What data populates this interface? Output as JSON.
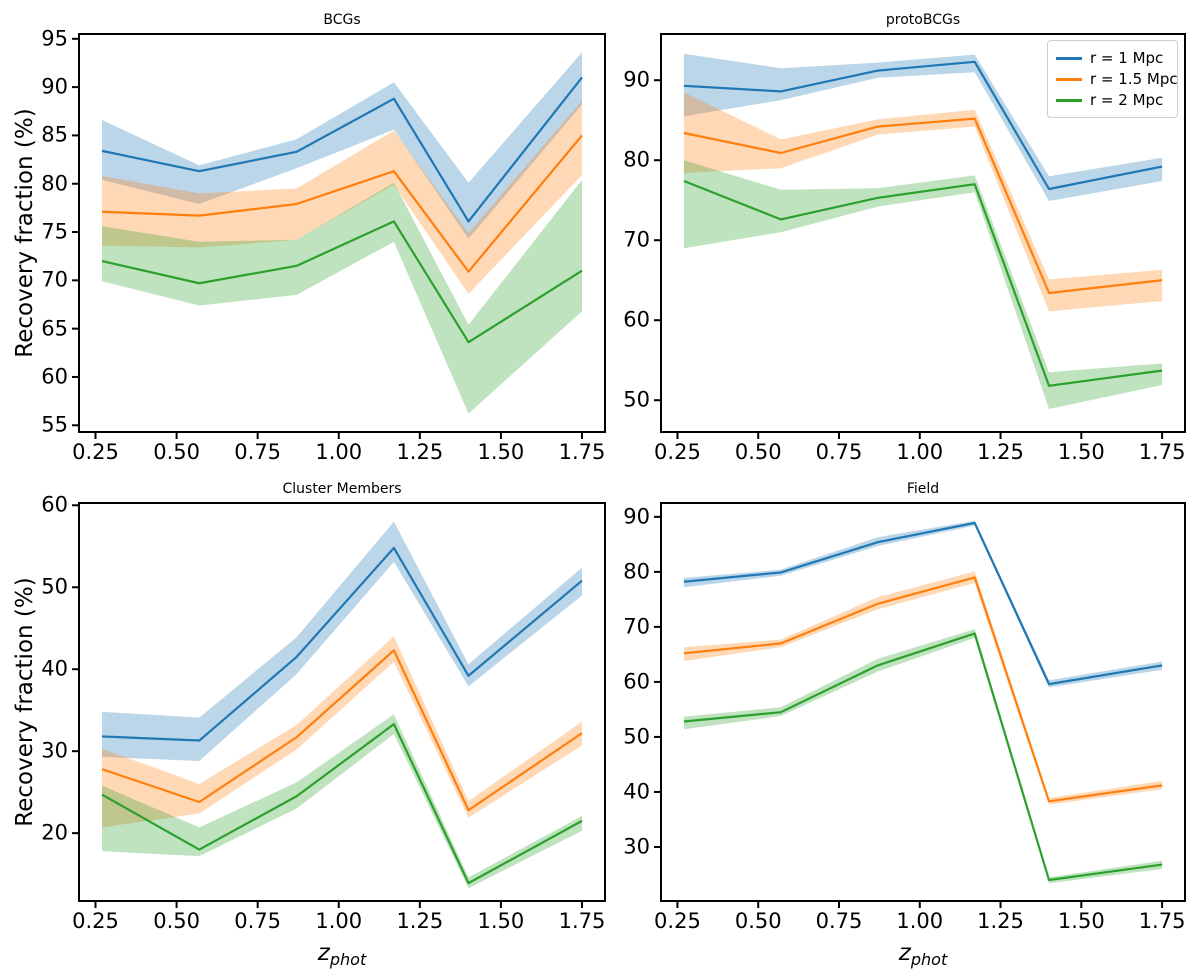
{
  "figure": {
    "background": "#ffffff",
    "ylabel": "Recovery fraction (%)",
    "xlabel": {
      "main": "z",
      "sub": "phot"
    }
  },
  "legend": {
    "position": "upper-right of protoBCGs panel",
    "items": [
      {
        "label": "r = 1 Mpc",
        "color": "#1f77b4"
      },
      {
        "label": "r = 1.5 Mpc",
        "color": "#ff7f0e"
      },
      {
        "label": "r = 2 Mpc",
        "color": "#2ca02c"
      }
    ]
  },
  "chart_data": [
    {
      "type": "line",
      "title": "BCGs",
      "xlabel": "z_phot",
      "ylabel": "Recovery fraction (%)",
      "grid": false,
      "band_alpha": 0.3,
      "x": [
        0.27,
        0.57,
        0.87,
        1.17,
        1.4,
        1.75
      ],
      "xlim": [
        0.196,
        1.824
      ],
      "ylim": [
        54.2,
        95.6
      ],
      "xticks": [
        {
          "value": 0.25,
          "label": "0.25"
        },
        {
          "value": 0.5,
          "label": "0.50"
        },
        {
          "value": 0.75,
          "label": "0.75"
        },
        {
          "value": 1.0,
          "label": "1.00"
        },
        {
          "value": 1.25,
          "label": "1.25"
        },
        {
          "value": 1.5,
          "label": "1.50"
        },
        {
          "value": 1.75,
          "label": "1.75"
        }
      ],
      "yticks": [
        55,
        60,
        65,
        70,
        75,
        80,
        85,
        90,
        95
      ],
      "series": [
        {
          "name": "r = 1 Mpc",
          "color": "#1f77b4",
          "values": [
            83.4,
            81.3,
            83.3,
            88.8,
            76.1,
            91.0
          ],
          "band_low": [
            80.4,
            77.9,
            81.6,
            85.6,
            74.3,
            88.2
          ],
          "band_high": [
            86.6,
            81.9,
            84.6,
            90.5,
            80.1,
            93.6
          ]
        },
        {
          "name": "r = 1.5 Mpc",
          "color": "#ff7f0e",
          "values": [
            77.1,
            76.7,
            77.9,
            81.3,
            70.9,
            85.0
          ],
          "band_low": [
            73.6,
            73.4,
            74.2,
            79.9,
            68.6,
            80.9
          ],
          "band_high": [
            80.8,
            79.0,
            79.5,
            85.5,
            74.9,
            88.6
          ]
        },
        {
          "name": "r = 2 Mpc",
          "color": "#2ca02c",
          "values": [
            72.0,
            69.7,
            71.5,
            76.1,
            63.6,
            71.0
          ],
          "band_low": [
            69.9,
            67.4,
            68.5,
            74.0,
            56.2,
            66.8
          ],
          "band_high": [
            75.6,
            74.0,
            74.2,
            80.1,
            65.4,
            80.4
          ]
        }
      ]
    },
    {
      "type": "line",
      "title": "protoBCGs",
      "xlabel": "z_phot",
      "ylabel": "",
      "grid": false,
      "band_alpha": 0.3,
      "x": [
        0.27,
        0.57,
        0.87,
        1.17,
        1.4,
        1.75
      ],
      "xlim": [
        0.196,
        1.824
      ],
      "ylim": [
        45.9,
        95.9
      ],
      "xticks": [
        {
          "value": 0.25,
          "label": "0.25"
        },
        {
          "value": 0.5,
          "label": "0.50"
        },
        {
          "value": 0.75,
          "label": "0.75"
        },
        {
          "value": 1.0,
          "label": "1.00"
        },
        {
          "value": 1.25,
          "label": "1.25"
        },
        {
          "value": 1.5,
          "label": "1.50"
        },
        {
          "value": 1.75,
          "label": "1.75"
        }
      ],
      "yticks": [
        50,
        60,
        70,
        80,
        90
      ],
      "series": [
        {
          "name": "r = 1 Mpc",
          "color": "#1f77b4",
          "values": [
            89.3,
            88.6,
            91.2,
            92.3,
            76.4,
            79.2
          ],
          "band_low": [
            85.5,
            87.5,
            90.3,
            91.0,
            74.9,
            77.4
          ],
          "band_high": [
            93.3,
            91.5,
            92.2,
            93.2,
            78.0,
            80.3
          ]
        },
        {
          "name": "r = 1.5 Mpc",
          "color": "#ff7f0e",
          "values": [
            83.4,
            80.9,
            84.2,
            85.2,
            63.4,
            65.0
          ],
          "band_low": [
            78.4,
            79.0,
            83.2,
            84.2,
            61.1,
            62.4
          ],
          "band_high": [
            88.5,
            82.6,
            85.1,
            86.3,
            65.1,
            66.3
          ]
        },
        {
          "name": "r = 2 Mpc",
          "color": "#2ca02c",
          "values": [
            77.4,
            72.6,
            75.3,
            77.0,
            51.8,
            53.7
          ],
          "band_low": [
            69.0,
            71.0,
            74.2,
            76.0,
            48.9,
            51.9
          ],
          "band_high": [
            80.0,
            76.3,
            76.5,
            78.1,
            53.5,
            54.6
          ]
        }
      ]
    },
    {
      "type": "line",
      "title": "Cluster Members",
      "xlabel": "z_phot",
      "ylabel": "Recovery fraction (%)",
      "grid": false,
      "band_alpha": 0.3,
      "x": [
        0.27,
        0.57,
        0.87,
        1.17,
        1.4,
        1.75
      ],
      "xlim": [
        0.196,
        1.824
      ],
      "ylim": [
        11.6,
        60.4
      ],
      "xticks": [
        {
          "value": 0.25,
          "label": "0.25"
        },
        {
          "value": 0.5,
          "label": "0.50"
        },
        {
          "value": 0.75,
          "label": "0.75"
        },
        {
          "value": 1.0,
          "label": "1.00"
        },
        {
          "value": 1.25,
          "label": "1.25"
        },
        {
          "value": 1.5,
          "label": "1.50"
        },
        {
          "value": 1.75,
          "label": "1.75"
        }
      ],
      "yticks": [
        20,
        30,
        40,
        50,
        60
      ],
      "series": [
        {
          "name": "r = 1 Mpc",
          "color": "#1f77b4",
          "values": [
            31.8,
            31.3,
            41.5,
            54.8,
            39.2,
            50.8
          ],
          "band_low": [
            29.3,
            28.8,
            39.4,
            53.1,
            37.9,
            49.0
          ],
          "band_high": [
            34.8,
            34.1,
            43.9,
            58.0,
            40.6,
            52.4
          ]
        },
        {
          "name": "r = 1.5 Mpc",
          "color": "#ff7f0e",
          "values": [
            27.8,
            23.8,
            31.7,
            42.3,
            22.8,
            32.2
          ],
          "band_low": [
            20.7,
            22.4,
            30.2,
            40.9,
            21.9,
            30.7
          ],
          "band_high": [
            30.3,
            26.0,
            33.2,
            44.0,
            23.9,
            33.6
          ]
        },
        {
          "name": "r = 2 Mpc",
          "color": "#2ca02c",
          "values": [
            24.7,
            18.0,
            24.5,
            33.3,
            13.9,
            21.5
          ],
          "band_low": [
            17.8,
            17.2,
            23.0,
            32.1,
            13.3,
            20.3
          ],
          "band_high": [
            25.8,
            20.7,
            26.2,
            34.5,
            14.6,
            22.1
          ]
        }
      ]
    },
    {
      "type": "line",
      "title": "Field",
      "xlabel": "z_phot",
      "ylabel": "",
      "grid": false,
      "band_alpha": 0.3,
      "x": [
        0.27,
        0.57,
        0.87,
        1.17,
        1.4,
        1.75
      ],
      "xlim": [
        0.196,
        1.824
      ],
      "ylim": [
        20.0,
        92.7
      ],
      "xticks": [
        {
          "value": 0.25,
          "label": "0.25"
        },
        {
          "value": 0.5,
          "label": "0.50"
        },
        {
          "value": 0.75,
          "label": "0.75"
        },
        {
          "value": 1.0,
          "label": "1.00"
        },
        {
          "value": 1.25,
          "label": "1.25"
        },
        {
          "value": 1.5,
          "label": "1.50"
        },
        {
          "value": 1.75,
          "label": "1.75"
        }
      ],
      "yticks": [
        30,
        40,
        50,
        60,
        70,
        80,
        90
      ],
      "series": [
        {
          "name": "r = 1 Mpc",
          "color": "#1f77b4",
          "values": [
            78.2,
            79.9,
            85.4,
            88.9,
            59.6,
            63.0
          ],
          "band_low": [
            77.2,
            79.3,
            84.7,
            88.4,
            59.0,
            62.2
          ],
          "band_high": [
            78.9,
            80.4,
            86.3,
            89.3,
            60.3,
            63.7
          ]
        },
        {
          "name": "r = 1.5 Mpc",
          "color": "#ff7f0e",
          "values": [
            65.2,
            67.0,
            74.2,
            79.0,
            38.3,
            41.2
          ],
          "band_low": [
            63.8,
            66.3,
            73.2,
            78.0,
            37.7,
            40.5
          ],
          "band_high": [
            66.3,
            67.7,
            75.4,
            80.1,
            38.9,
            42.0
          ]
        },
        {
          "name": "r = 2 Mpc",
          "color": "#2ca02c",
          "values": [
            52.8,
            54.5,
            63.0,
            68.8,
            24.0,
            26.8
          ],
          "band_low": [
            51.4,
            53.8,
            61.9,
            68.0,
            23.4,
            26.0
          ],
          "band_high": [
            53.7,
            55.4,
            64.2,
            69.6,
            24.5,
            27.5
          ]
        }
      ]
    }
  ]
}
